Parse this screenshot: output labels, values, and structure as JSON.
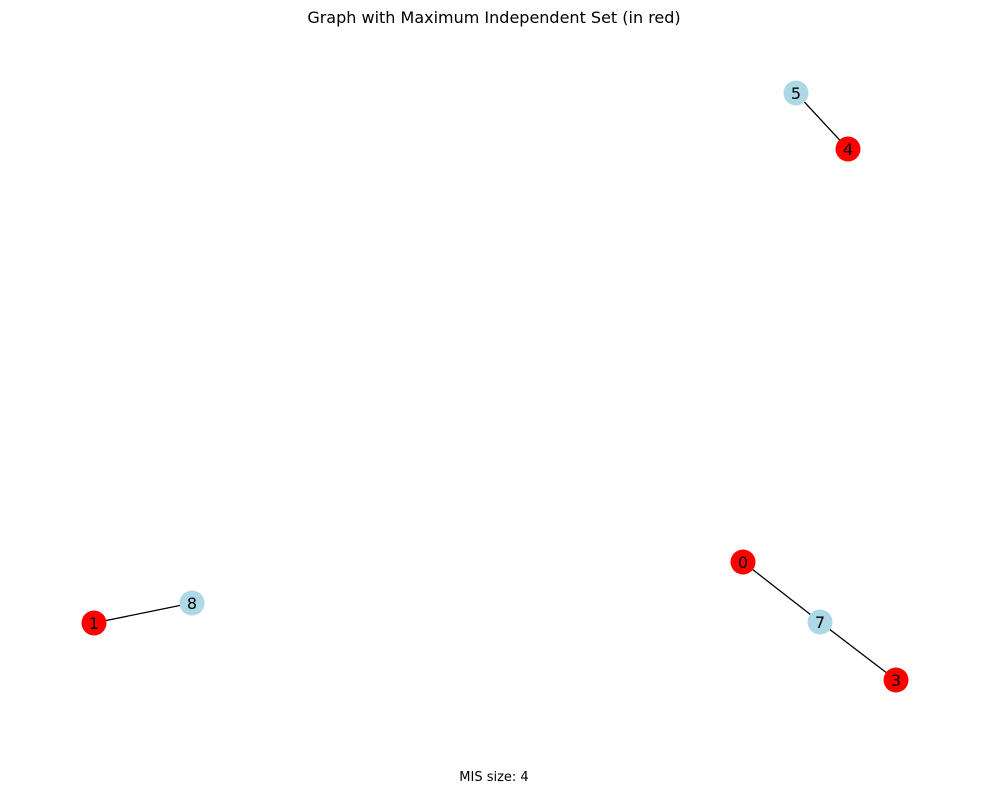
{
  "title": "Graph with Maximum Independent Set (in red)",
  "caption": "MIS size: 4",
  "colors": {
    "mis_node": "#ff0000",
    "other_node": "#add8e6",
    "edge": "#000000",
    "label": "#000000"
  },
  "nodes": [
    {
      "id": "0",
      "in_mis": true
    },
    {
      "id": "1",
      "in_mis": true
    },
    {
      "id": "3",
      "in_mis": true
    },
    {
      "id": "4",
      "in_mis": true
    },
    {
      "id": "5",
      "in_mis": false
    },
    {
      "id": "7",
      "in_mis": false
    },
    {
      "id": "8",
      "in_mis": false
    }
  ],
  "edges": [
    {
      "source": "5",
      "target": "4"
    },
    {
      "source": "1",
      "target": "8"
    },
    {
      "source": "0",
      "target": "7"
    },
    {
      "source": "7",
      "target": "3"
    }
  ]
}
